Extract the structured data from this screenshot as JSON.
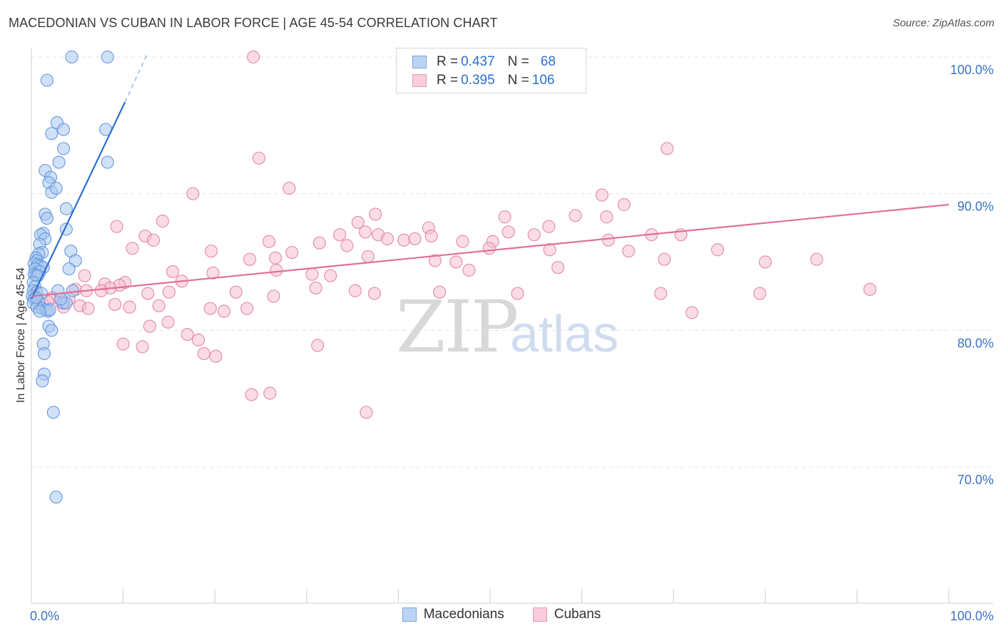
{
  "title": "MACEDONIAN VS CUBAN IN LABOR FORCE | AGE 45-54 CORRELATION CHART",
  "source": "Source: ZipAtlas.com",
  "watermark": {
    "zip": "ZIP",
    "atlas": "atlas"
  },
  "legend": {
    "rows": [
      {
        "r_label": "R = ",
        "r_value": "0.437",
        "n_label": "N = ",
        "n_value": "68"
      },
      {
        "r_label": "R = ",
        "r_value": "0.395",
        "n_label": "N = ",
        "n_value": "106"
      }
    ]
  },
  "colors": {
    "blue_fill": "#a9c8f0",
    "blue_stroke": "#5b8fdc",
    "blue_line": "#2b6fcf",
    "pink_fill": "#f6bfd2",
    "pink_stroke": "#e07ea0",
    "pink_line": "#e0709a",
    "axis_text": "#3a72c8",
    "grid": "#e3e3e3"
  },
  "chart_data": {
    "type": "scatter",
    "title": "MACEDONIAN VS CUBAN IN LABOR FORCE | AGE 45-54 CORRELATION CHART",
    "xlabel": "",
    "ylabel": "In Labor Force | Age 45-54",
    "xlim": [
      0,
      100
    ],
    "ylim": [
      60,
      102
    ],
    "x_tick_labels": [
      "0.0%",
      "100.0%"
    ],
    "y_ticks": [
      70,
      80,
      90,
      100
    ],
    "y_tick_labels": [
      "70.0%",
      "80.0%",
      "90.0%",
      "100.0%"
    ],
    "legend_position": "top-center",
    "series": [
      {
        "name": "Macedonians",
        "color": "#5b8fdc",
        "r": 0.437,
        "n": 68,
        "trend": {
          "x0": 0,
          "y0": 82.3,
          "x1": 10.2,
          "y1": 96.7,
          "dash_to_x": 12.6,
          "dash_to_y": 100.2
        },
        "points": [
          [
            4.4,
            100
          ],
          [
            8.3,
            100
          ],
          [
            1.7,
            98.3
          ],
          [
            2.8,
            95.2
          ],
          [
            3.5,
            94.7
          ],
          [
            2.2,
            94.4
          ],
          [
            8.1,
            94.7
          ],
          [
            3.5,
            93.3
          ],
          [
            3.0,
            92.3
          ],
          [
            8.3,
            92.3
          ],
          [
            1.5,
            91.7
          ],
          [
            2.1,
            91.2
          ],
          [
            1.9,
            90.8
          ],
          [
            2.2,
            90.1
          ],
          [
            2.7,
            90.4
          ],
          [
            3.8,
            88.9
          ],
          [
            1.5,
            88.5
          ],
          [
            1.7,
            88.2
          ],
          [
            3.8,
            87.4
          ],
          [
            1.3,
            87.1
          ],
          [
            1.0,
            87.0
          ],
          [
            1.5,
            86.7
          ],
          [
            0.9,
            86.3
          ],
          [
            4.3,
            85.8
          ],
          [
            1.2,
            85.7
          ],
          [
            0.8,
            85.6
          ],
          [
            0.5,
            85.3
          ],
          [
            0.6,
            85.1
          ],
          [
            4.8,
            85.1
          ],
          [
            0.3,
            84.9
          ],
          [
            0.7,
            84.8
          ],
          [
            1.0,
            84.7
          ],
          [
            1.3,
            84.6
          ],
          [
            0.4,
            84.5
          ],
          [
            4.1,
            84.5
          ],
          [
            0.9,
            84.3
          ],
          [
            0.3,
            84.1
          ],
          [
            0.5,
            84.0
          ],
          [
            0.7,
            84.0
          ],
          [
            0.2,
            83.5
          ],
          [
            0.4,
            83.2
          ],
          [
            0.2,
            82.9
          ],
          [
            0.6,
            82.8
          ],
          [
            1.1,
            82.7
          ],
          [
            2.9,
            82.9
          ],
          [
            4.5,
            82.9
          ],
          [
            0.1,
            82.5
          ],
          [
            0.3,
            82.3
          ],
          [
            0.8,
            82.1
          ],
          [
            0.2,
            82.0
          ],
          [
            3.5,
            82.0
          ],
          [
            3.8,
            82.0
          ],
          [
            0.6,
            81.7
          ],
          [
            1.2,
            81.6
          ],
          [
            1.6,
            81.5
          ],
          [
            1.8,
            81.4
          ],
          [
            2.0,
            81.5
          ],
          [
            0.9,
            81.4
          ],
          [
            1.9,
            80.3
          ],
          [
            2.2,
            80.0
          ],
          [
            1.3,
            79.0
          ],
          [
            1.4,
            78.3
          ],
          [
            1.4,
            76.8
          ],
          [
            1.2,
            76.3
          ],
          [
            2.4,
            74.0
          ],
          [
            2.7,
            67.8
          ],
          [
            0.5,
            82.4
          ],
          [
            3.2,
            82.3
          ]
        ]
      },
      {
        "name": "Cubans",
        "color": "#e07ea0",
        "r": 0.395,
        "n": 106,
        "trend": {
          "x0": 0,
          "y0": 82.5,
          "x1": 100,
          "y1": 89.2
        },
        "points": [
          [
            24.2,
            100
          ],
          [
            69.3,
            93.3
          ],
          [
            24.8,
            92.6
          ],
          [
            28.1,
            90.4
          ],
          [
            17.6,
            90.0
          ],
          [
            62.2,
            89.9
          ],
          [
            64.6,
            89.2
          ],
          [
            37.5,
            88.5
          ],
          [
            59.3,
            88.4
          ],
          [
            62.7,
            88.3
          ],
          [
            51.6,
            88.3
          ],
          [
            14.3,
            88.0
          ],
          [
            35.6,
            87.9
          ],
          [
            56.4,
            87.6
          ],
          [
            9.3,
            87.6
          ],
          [
            43.3,
            87.5
          ],
          [
            36.4,
            87.2
          ],
          [
            52.0,
            87.2
          ],
          [
            37.8,
            87.0
          ],
          [
            33.6,
            87.0
          ],
          [
            43.6,
            86.9
          ],
          [
            54.8,
            87.0
          ],
          [
            67.6,
            87.0
          ],
          [
            70.8,
            87.0
          ],
          [
            12.4,
            86.9
          ],
          [
            13.3,
            86.6
          ],
          [
            25.9,
            86.5
          ],
          [
            38.8,
            86.7
          ],
          [
            40.6,
            86.6
          ],
          [
            41.8,
            86.7
          ],
          [
            47.0,
            86.5
          ],
          [
            50.3,
            86.5
          ],
          [
            62.9,
            86.6
          ],
          [
            31.4,
            86.4
          ],
          [
            34.4,
            86.2
          ],
          [
            11.0,
            86.0
          ],
          [
            49.9,
            86.0
          ],
          [
            56.5,
            85.9
          ],
          [
            65.1,
            85.8
          ],
          [
            74.8,
            85.9
          ],
          [
            19.6,
            85.8
          ],
          [
            28.4,
            85.7
          ],
          [
            36.7,
            85.4
          ],
          [
            23.8,
            85.2
          ],
          [
            26.6,
            85.3
          ],
          [
            44.0,
            85.1
          ],
          [
            46.3,
            85.0
          ],
          [
            69.0,
            85.2
          ],
          [
            85.6,
            85.2
          ],
          [
            80.0,
            85.0
          ],
          [
            26.7,
            84.4
          ],
          [
            47.7,
            84.4
          ],
          [
            57.4,
            84.6
          ],
          [
            15.4,
            84.3
          ],
          [
            19.8,
            84.2
          ],
          [
            30.6,
            84.1
          ],
          [
            32.6,
            84.0
          ],
          [
            5.8,
            84.0
          ],
          [
            16.4,
            83.6
          ],
          [
            10.2,
            83.5
          ],
          [
            8.0,
            83.4
          ],
          [
            9.6,
            83.3
          ],
          [
            8.6,
            83.1
          ],
          [
            31.0,
            83.1
          ],
          [
            4.8,
            83.0
          ],
          [
            6.0,
            82.9
          ],
          [
            7.6,
            82.9
          ],
          [
            12.7,
            82.7
          ],
          [
            15.0,
            82.8
          ],
          [
            22.3,
            82.8
          ],
          [
            26.4,
            82.5
          ],
          [
            35.3,
            82.9
          ],
          [
            37.4,
            82.7
          ],
          [
            44.5,
            82.8
          ],
          [
            53.0,
            82.7
          ],
          [
            68.6,
            82.7
          ],
          [
            79.4,
            82.7
          ],
          [
            91.4,
            83.0
          ],
          [
            2.3,
            82.4
          ],
          [
            4.1,
            82.3
          ],
          [
            0.6,
            82.0
          ],
          [
            1.3,
            81.8
          ],
          [
            3.3,
            82.0
          ],
          [
            5.3,
            81.8
          ],
          [
            6.2,
            81.6
          ],
          [
            9.1,
            81.9
          ],
          [
            10.7,
            81.7
          ],
          [
            13.9,
            81.8
          ],
          [
            19.5,
            81.6
          ],
          [
            21.0,
            81.4
          ],
          [
            23.5,
            81.6
          ],
          [
            72.0,
            81.3
          ],
          [
            14.9,
            80.6
          ],
          [
            12.9,
            80.3
          ],
          [
            17.0,
            79.7
          ],
          [
            18.2,
            79.3
          ],
          [
            10.0,
            79.0
          ],
          [
            31.2,
            78.9
          ],
          [
            12.1,
            78.8
          ],
          [
            18.8,
            78.3
          ],
          [
            20.1,
            78.1
          ],
          [
            24.0,
            75.3
          ],
          [
            26.0,
            75.4
          ],
          [
            36.5,
            74.0
          ],
          [
            3.5,
            81.7
          ],
          [
            1.8,
            82.1
          ]
        ]
      }
    ]
  }
}
